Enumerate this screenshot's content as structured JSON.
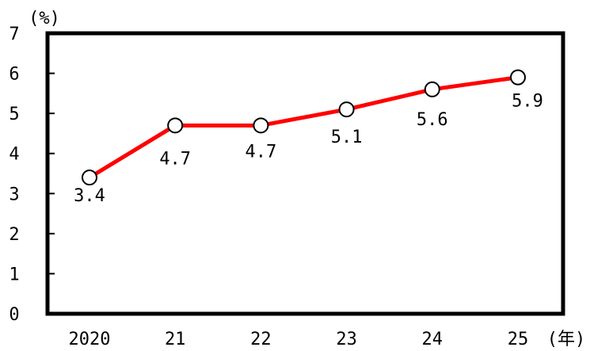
{
  "chart_data": {
    "type": "line",
    "title": "",
    "xlabel": "",
    "ylabel": "",
    "y_unit": "(%)",
    "x_unit": "(年)",
    "categories": [
      "2020",
      "21",
      "22",
      "23",
      "24",
      "25"
    ],
    "series": [
      {
        "values": [
          3.4,
          4.7,
          4.7,
          5.1,
          5.6,
          5.9
        ],
        "labels": [
          "3.4",
          "4.7",
          "4.7",
          "5.1",
          "5.6",
          "5.9"
        ]
      }
    ],
    "yticks": [
      "0",
      "1",
      "2",
      "3",
      "4",
      "5",
      "6",
      "7"
    ],
    "ylim": [
      0,
      7
    ],
    "grid": false,
    "legend": "none",
    "colors": {
      "line": "#ff0000",
      "marker_fill": "#ffffff",
      "marker_stroke": "#000000",
      "frame": "#000000"
    }
  }
}
